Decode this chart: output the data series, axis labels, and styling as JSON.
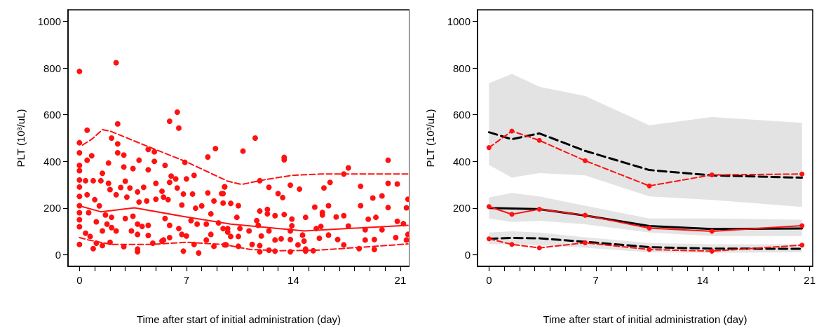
{
  "chart_data": [
    {
      "type": "scatter",
      "xlabel": "Time after start of initial administration (day)",
      "ylabel": "PLT (10³/uL)",
      "xlim": [
        -0.75,
        21.6
      ],
      "ylim": [
        -50,
        1050
      ],
      "xticks": [
        0,
        {
          "value": 1,
          "label": null
        },
        {
          "value": 2,
          "label": null
        },
        {
          "value": 3,
          "label": null
        },
        {
          "value": 4,
          "label": null
        },
        {
          "value": 5,
          "label": null
        },
        {
          "value": 6,
          "label": null
        },
        7,
        {
          "value": 8,
          "label": null
        },
        {
          "value": 9,
          "label": null
        },
        {
          "value": 10,
          "label": null
        },
        {
          "value": 11,
          "label": null
        },
        {
          "value": 12,
          "label": null
        },
        {
          "value": 13,
          "label": null
        },
        14,
        {
          "value": 15,
          "label": null
        },
        {
          "value": 16,
          "label": null
        },
        {
          "value": 17,
          "label": null
        },
        {
          "value": 18,
          "label": null
        },
        {
          "value": 19,
          "label": null
        },
        {
          "value": 20,
          "label": null
        },
        21
      ],
      "yticks": [
        0,
        200,
        400,
        600,
        800,
        1000
      ],
      "series": [
        {
          "type": "scatter",
          "marker": "circle",
          "color": "#ff1111",
          "x": [
            0,
            2.4,
            6.4,
            5.9,
            6.5,
            2.5,
            0.5,
            8.9,
            0,
            0,
            0,
            0,
            0,
            0,
            0,
            0,
            0,
            0,
            0,
            0,
            2.1,
            2.5,
            2.5,
            2.9,
            0.5,
            0.8,
            1.9,
            3.9,
            4.5,
            4.9,
            4.9,
            3.5,
            2.9,
            4.5,
            5.6,
            6.9,
            6,
            6.3,
            7,
            7.5,
            8.4,
            9.5,
            0.4,
            0.9,
            1.4,
            1.5,
            1.9,
            2,
            2.7,
            3,
            3.3,
            4.2,
            5,
            5.4,
            5.9,
            6.4,
            6.8,
            7.4,
            8.4,
            8.8,
            9.3,
            9.4,
            0.5,
            1,
            1.3,
            2.4,
            3.1,
            3.8,
            3.9,
            4.4,
            5,
            5.5,
            5.8,
            6.7,
            7.6,
            8,
            8.6,
            0.6,
            1.1,
            1.7,
            1.8,
            2.1,
            3,
            3.5,
            3.8,
            4.1,
            4.5,
            5.6,
            5.9,
            6.5,
            7.3,
            7.7,
            8.3,
            9.1,
            9.7,
            0.4,
            0.7,
            1.5,
            2.1,
            2.4,
            3.4,
            3.8,
            4.5,
            5.5,
            5.9,
            6.7,
            7,
            8.3,
            8.6,
            9.4,
            0.9,
            1.1,
            1.5,
            2,
            2.9,
            3.8,
            3.8,
            4.8,
            5.4,
            6.8,
            7.5,
            7.8,
            8.8,
            9.5,
            11.5,
            10.7,
            13.4,
            13.4,
            20.2,
            17.6,
            17.3,
            16.4,
            16,
            9.5,
            11.8,
            12.4,
            13.8,
            14.4,
            13,
            13.3,
            18.4,
            20.2,
            20.8,
            21.5,
            9.4,
            19.2,
            19.8,
            9.9,
            10.4,
            11.8,
            12.3,
            12.3,
            12.8,
            13.4,
            13.9,
            14.8,
            15.4,
            15.9,
            15.9,
            16.3,
            16.8,
            17.3,
            18.4,
            18.9,
            19.4,
            20.2,
            21.4,
            20.8,
            21.2,
            10.3,
            11.6,
            11.7,
            9.7,
            10.5,
            11.1,
            12.4,
            13.9,
            13.8,
            14.6,
            15.5,
            15.8,
            16.3,
            17.6,
            18.7,
            19.8,
            21.5,
            9.9,
            10.4,
            11.9,
            12.8,
            13.2,
            13.8,
            14.3,
            14.7,
            15.7,
            16.9,
            18.7,
            19.3,
            20.7,
            21.4,
            9.6,
            10.4,
            11.3,
            11.8,
            11.8,
            12.4,
            12.8,
            13.8,
            14.8,
            14.8,
            15.3,
            17.3,
            18.3,
            19.3
          ],
          "values": [
            786,
            823,
            611,
            572,
            543,
            561,
            534,
            455,
            480,
            437,
            383,
            360,
            320,
            290,
            250,
            210,
            180,
            150,
            120,
            44,
            500,
            475,
            437,
            427,
            405,
            424,
            393,
            405,
            451,
            441,
            400,
            369,
            376,
            364,
            383,
            396,
            337,
            325,
            325,
            340,
            419,
            291,
            317,
            317,
            317,
            349,
            306,
            279,
            288,
            315,
            286,
            289,
            306,
            272,
            310,
            286,
            260,
            260,
            265,
            230,
            262,
            221,
            257,
            236,
            209,
            257,
            247,
            269,
            226,
            230,
            238,
            247,
            236,
            213,
            199,
            209,
            175,
            180,
            141,
            170,
            131,
            160,
            155,
            165,
            131,
            121,
            126,
            155,
            126,
            112,
            146,
            131,
            131,
            136,
            97,
            92,
            78,
            102,
            116,
            102,
            102,
            87,
            82,
            63,
            73,
            87,
            80,
            63,
            87,
            112,
            26,
            49,
            39,
            53,
            34,
            24,
            12,
            49,
            58,
            15,
            44,
            7,
            36,
            42,
            500,
            444,
            417,
            407,
            405,
            372,
            346,
            310,
            286,
            291,
            317,
            289,
            298,
            281,
            262,
            245,
            293,
            306,
            303,
            238,
            262,
            243,
            252,
            220,
            210,
            187,
            194,
            175,
            167,
            172,
            153,
            160,
            204,
            181,
            170,
            210,
            162,
            167,
            210,
            152,
            160,
            202,
            201,
            143,
            133,
            160,
            146,
            126,
            112,
            112,
            102,
            102,
            124,
            102,
            84,
            112,
            121,
            84,
            123,
            107,
            107,
            87,
            78,
            78,
            80,
            63,
            68,
            65,
            42,
            58,
            70,
            65,
            63,
            65,
            73,
            63,
            42,
            36,
            44,
            39,
            12,
            19,
            15,
            12,
            15,
            24,
            17,
            42,
            26,
            22
          ]
        },
        {
          "type": "line",
          "marker": "none",
          "line_style": "dashed",
          "color": "#ff1111",
          "x": [
            0.2,
            0.8,
            1.5,
            2,
            4.4,
            7,
            9.7,
            10.6,
            12,
            13.9,
            15.8,
            21.6
          ],
          "values": [
            470,
            495,
            536,
            530,
            466,
            398,
            315,
            301,
            320,
            340,
            346,
            346
          ]
        },
        {
          "type": "line",
          "marker": "none",
          "line_style": "solid",
          "color": "#ff1111",
          "x": [
            0,
            1.4,
            3.6,
            6.7,
            9.9,
            14.7,
            21.5
          ],
          "values": [
            209,
            184,
            201,
            165,
            131,
            102,
            126
          ]
        },
        {
          "type": "line",
          "marker": "none",
          "line_style": "dashed",
          "color": "#ff1111",
          "x": [
            0,
            0.6,
            2.1,
            4.8,
            7,
            9.4,
            11.2,
            13.2,
            15.5,
            18.5,
            21.5
          ],
          "values": [
            73,
            63,
            44,
            44,
            53,
            44,
            22,
            17,
            19,
            32,
            46
          ]
        }
      ]
    },
    {
      "type": "line",
      "xlabel": "Time after start of initial administration (day)",
      "ylabel": "PLT (10³/uL)",
      "xlim": [
        -0.75,
        21.2
      ],
      "ylim": [
        -50,
        1050
      ],
      "xticks": [
        0,
        {
          "value": 1,
          "label": null
        },
        {
          "value": 2,
          "label": null
        },
        {
          "value": 3,
          "label": null
        },
        {
          "value": 4,
          "label": null
        },
        {
          "value": 5,
          "label": null
        },
        {
          "value": 6,
          "label": null
        },
        7,
        {
          "value": 8,
          "label": null
        },
        {
          "value": 9,
          "label": null
        },
        {
          "value": 10,
          "label": null
        },
        {
          "value": 11,
          "label": null
        },
        {
          "value": 12,
          "label": null
        },
        {
          "value": 13,
          "label": null
        },
        14,
        {
          "value": 15,
          "label": null
        },
        {
          "value": 16,
          "label": null
        },
        {
          "value": 17,
          "label": null
        },
        {
          "value": 18,
          "label": null
        },
        {
          "value": 19,
          "label": null
        },
        {
          "value": 20,
          "label": null
        },
        21
      ],
      "yticks": [
        0,
        200,
        400,
        600,
        800,
        1000
      ],
      "x": [
        0,
        1.5,
        3.3,
        6.3,
        10.5,
        14.6,
        20.5
      ],
      "series": [
        {
          "marker": "none",
          "line_style": "dashed",
          "color": "#000000",
          "values": [
            525,
            495,
            520,
            445,
            363,
            340,
            330
          ],
          "lower": [
            385,
            330,
            350,
            340,
            250,
            235,
            205
          ],
          "upper": [
            735,
            775,
            720,
            680,
            555,
            590,
            565
          ]
        },
        {
          "marker": "none",
          "line_style": "solid",
          "color": "#000000",
          "values": [
            200,
            198,
            195,
            168,
            123,
            110,
            112
          ],
          "lower": [
            155,
            140,
            145,
            130,
            95,
            80,
            80
          ],
          "upper": [
            245,
            265,
            250,
            210,
            155,
            155,
            150
          ]
        },
        {
          "marker": "none",
          "line_style": "dashed",
          "color": "#000000",
          "values": [
            68,
            72,
            70,
            55,
            32,
            26,
            25
          ],
          "lower": [
            45,
            45,
            40,
            30,
            10,
            8,
            10
          ],
          "upper": [
            95,
            100,
            95,
            75,
            50,
            45,
            45
          ]
        },
        {
          "marker": "circle",
          "line_style": "dashed",
          "color": "#ff1111",
          "values": [
            459,
            530,
            490,
            403,
            295,
            342,
            346
          ]
        },
        {
          "marker": "circle",
          "line_style": "solid",
          "color": "#ff1111",
          "values": [
            206,
            173,
            195,
            169,
            114,
            100,
            124
          ]
        },
        {
          "marker": "circle",
          "line_style": "dashed",
          "color": "#ff1111",
          "values": [
            68,
            44,
            29,
            51,
            22,
            15,
            41
          ]
        }
      ]
    }
  ]
}
